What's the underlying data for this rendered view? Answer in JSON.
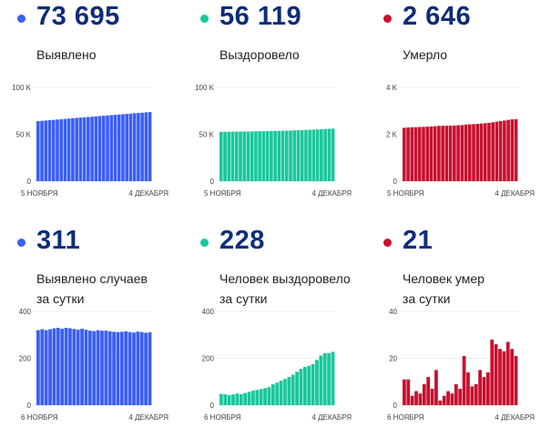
{
  "colors": {
    "cases": "#3b5ef7",
    "recovered": "#19c79b",
    "deaths": "#c8102e"
  },
  "chart_data": [
    {
      "type": "bar",
      "key": "cases",
      "headline": "73 695",
      "title": "Выявлено",
      "ylim": [
        0,
        100000
      ],
      "yticks": [
        "0",
        "50 K",
        "100 K"
      ],
      "ytick_values": [
        0,
        50000,
        100000
      ],
      "xlabels": [
        "5 НОЯБРЯ",
        "4 ДЕКАБРЯ"
      ],
      "values": [
        64000,
        64350,
        64700,
        65050,
        65400,
        65750,
        66100,
        66450,
        66800,
        67150,
        67500,
        67800,
        68100,
        68450,
        68800,
        69150,
        69450,
        69800,
        70100,
        70450,
        70800,
        71100,
        71450,
        71750,
        72100,
        72450,
        72750,
        73050,
        73400,
        73695
      ]
    },
    {
      "type": "bar",
      "key": "recovered",
      "headline": "56 119",
      "title": "Выздоровело",
      "ylim": [
        0,
        100000
      ],
      "yticks": [
        "0",
        "50 K",
        "100 K"
      ],
      "ytick_values": [
        0,
        50000,
        100000
      ],
      "xlabels": [
        "5 НОЯБРЯ",
        "4 ДЕКАБРЯ"
      ],
      "values": [
        52700,
        52750,
        52800,
        52840,
        52890,
        52940,
        52990,
        53040,
        53100,
        53170,
        53240,
        53310,
        53390,
        53480,
        53570,
        53670,
        53780,
        53900,
        54030,
        54170,
        54320,
        54480,
        54640,
        54810,
        55000,
        55210,
        55430,
        55650,
        55890,
        56119
      ]
    },
    {
      "type": "bar",
      "key": "deaths",
      "headline": "2 646",
      "title": "Умерло",
      "ylim": [
        0,
        4000
      ],
      "yticks": [
        "0",
        "2 K",
        "4 K"
      ],
      "ytick_values": [
        0,
        2000,
        4000
      ],
      "xlabels": [
        "5 НОЯБРЯ",
        "4 ДЕКАБРЯ"
      ],
      "values": [
        2280,
        2291,
        2302,
        2306,
        2312,
        2317,
        2326,
        2338,
        2345,
        2360,
        2362,
        2366,
        2372,
        2377,
        2386,
        2393,
        2414,
        2428,
        2436,
        2445,
        2460,
        2472,
        2486,
        2514,
        2540,
        2564,
        2587,
        2614,
        2638,
        2646
      ]
    },
    {
      "type": "bar",
      "key": "cases",
      "headline": "311",
      "title": "Выявлено случаев за сутки",
      "title_lines": [
        "Выявлено случаев",
        "за сутки"
      ],
      "ylim": [
        0,
        400
      ],
      "yticks": [
        "0",
        "200",
        "400"
      ],
      "ytick_values": [
        0,
        200,
        400
      ],
      "xlabels": [
        "6 НОЯБРЯ",
        "4 ДЕКАБРЯ"
      ],
      "values": [
        320,
        324,
        320,
        324,
        328,
        330,
        326,
        330,
        328,
        325,
        322,
        326,
        322,
        318,
        316,
        320,
        318,
        318,
        315,
        313,
        312,
        313,
        315,
        312,
        310,
        314,
        312,
        309,
        311
      ]
    },
    {
      "type": "bar",
      "key": "recovered",
      "headline": "228",
      "title": "Человек выздоровело за сутки",
      "title_lines": [
        "Человек выздоровело",
        "за сутки"
      ],
      "ylim": [
        0,
        400
      ],
      "yticks": [
        "0",
        "200",
        "400"
      ],
      "ytick_values": [
        0,
        200,
        400
      ],
      "xlabels": [
        "6 НОЯБРЯ",
        "4 ДЕКАБРЯ"
      ],
      "values": [
        48,
        46,
        43,
        46,
        50,
        47,
        52,
        57,
        62,
        65,
        69,
        73,
        77,
        89,
        96,
        105,
        112,
        120,
        130,
        142,
        155,
        163,
        168,
        175,
        193,
        212,
        222,
        222,
        228
      ]
    },
    {
      "type": "bar",
      "key": "deaths",
      "headline": "21",
      "title": "Человек умер за сутки",
      "title_lines": [
        "Человек умер",
        "за сутки"
      ],
      "ylim": [
        0,
        40
      ],
      "yticks": [
        "0",
        "20",
        "40"
      ],
      "ytick_values": [
        0,
        20,
        40
      ],
      "xlabels": [
        "6 НОЯБРЯ",
        "4 ДЕКАБРЯ"
      ],
      "values": [
        11,
        11,
        4,
        6,
        5,
        9,
        12,
        7,
        15,
        2,
        4,
        6,
        5,
        9,
        7,
        21,
        14,
        8,
        9,
        15,
        12,
        14,
        28,
        26,
        24,
        23,
        27,
        24,
        21
      ]
    }
  ]
}
